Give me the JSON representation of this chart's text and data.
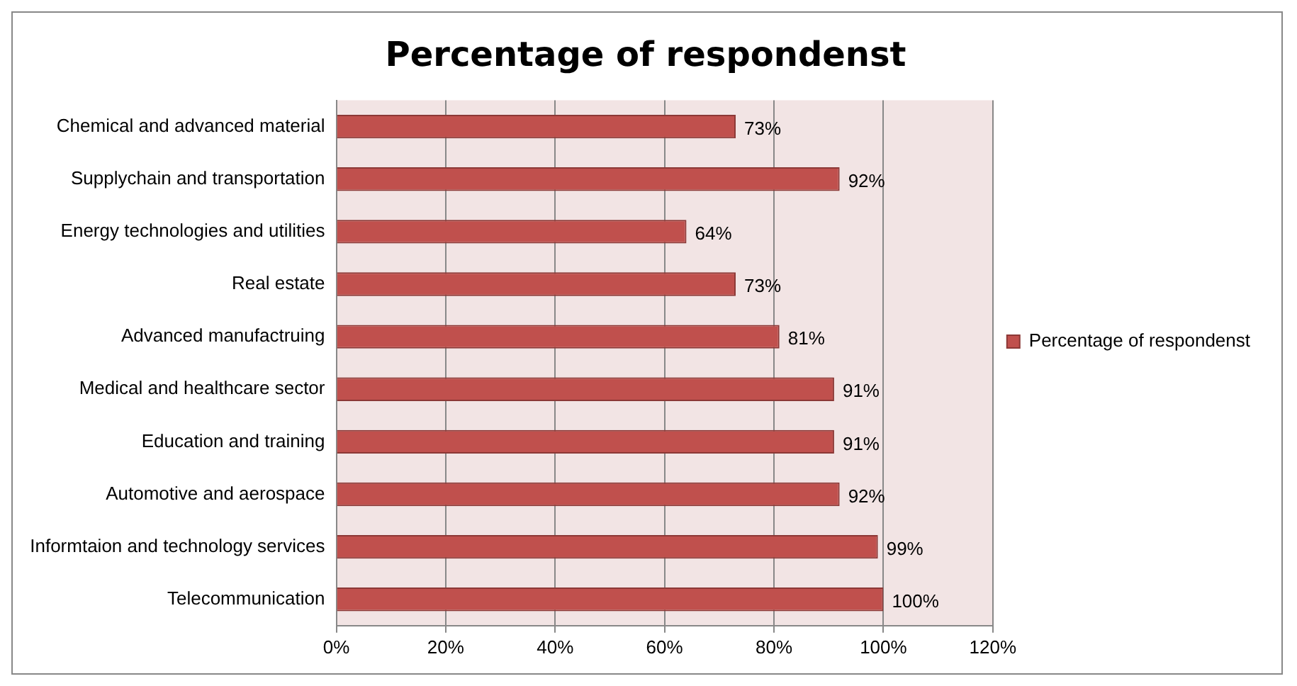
{
  "chart_data": {
    "type": "bar",
    "orientation": "horizontal",
    "title": "Percentage of respondenst",
    "categories": [
      "Chemical and advanced material",
      "Supplychain and transportation",
      "Energy technologies and utilities",
      "Real estate",
      "Advanced manufactruing",
      "Medical and healthcare sector",
      "Education and training",
      "Automotive and aerospace",
      "Informtaion and technology services",
      "Telecommunication"
    ],
    "series": [
      {
        "name": "Percentage of respondenst",
        "color": "#c0504d",
        "values": [
          73,
          92,
          64,
          73,
          81,
          91,
          91,
          92,
          99,
          100
        ],
        "value_labels": [
          "73%",
          "92%",
          "64%",
          "73%",
          "81%",
          "91%",
          "91%",
          "92%",
          "99%",
          "100%"
        ]
      }
    ],
    "xlim": [
      0,
      120
    ],
    "xticks": [
      {
        "value": 0,
        "label": "0%"
      },
      {
        "value": 20,
        "label": "20%"
      },
      {
        "value": 40,
        "label": "40%"
      },
      {
        "value": 60,
        "label": "60%"
      },
      {
        "value": 80,
        "label": "80%"
      },
      {
        "value": 100,
        "label": "100%"
      },
      {
        "value": 120,
        "label": "120%"
      }
    ],
    "grid": "x",
    "legend": "right"
  }
}
